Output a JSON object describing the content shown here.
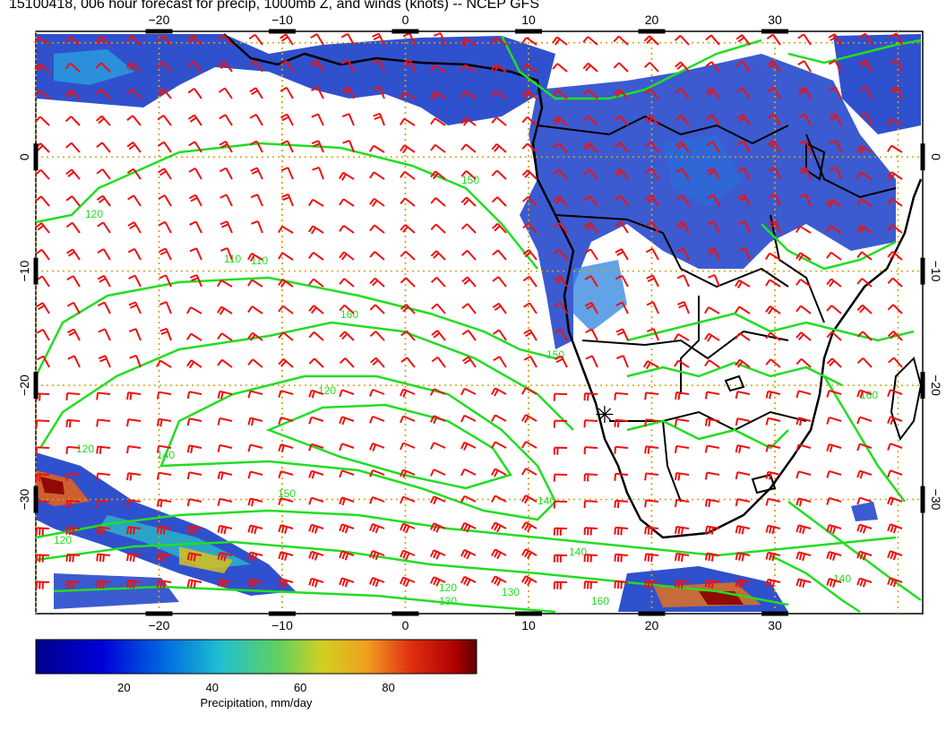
{
  "title": "15100418, 006 hour forecast for precip, 1000mb Z, and winds (knots) -- NCEP GFS",
  "map": {
    "lon_range": [
      -30,
      42
    ],
    "lat_range": [
      -40,
      11
    ],
    "lon_ticks": [
      -20,
      -10,
      0,
      10,
      20,
      30
    ],
    "lat_ticks": [
      0,
      -10,
      -20,
      -30
    ],
    "lon_tick_labels": [
      "−20",
      "−10",
      "0",
      "10",
      "20",
      "30"
    ],
    "lat_tick_labels": [
      "0",
      "−10",
      "−20",
      "−30"
    ],
    "grid": true,
    "colors": {
      "land_outline": "#000000",
      "contour": "#22dd22",
      "wind": "#ee1111",
      "grid": "#d4a017"
    }
  },
  "contours": {
    "labels": [
      "120",
      "110",
      "160",
      "150",
      "120",
      "140",
      "120",
      "150",
      "140",
      "130",
      "160",
      "120",
      "130",
      "160",
      "140",
      "140",
      "120",
      "110",
      "150"
    ]
  },
  "colorbar": {
    "label": "Precipitation, mm/day",
    "ticks": [
      "20",
      "40",
      "60",
      "80"
    ],
    "range": [
      0,
      100
    ]
  }
}
